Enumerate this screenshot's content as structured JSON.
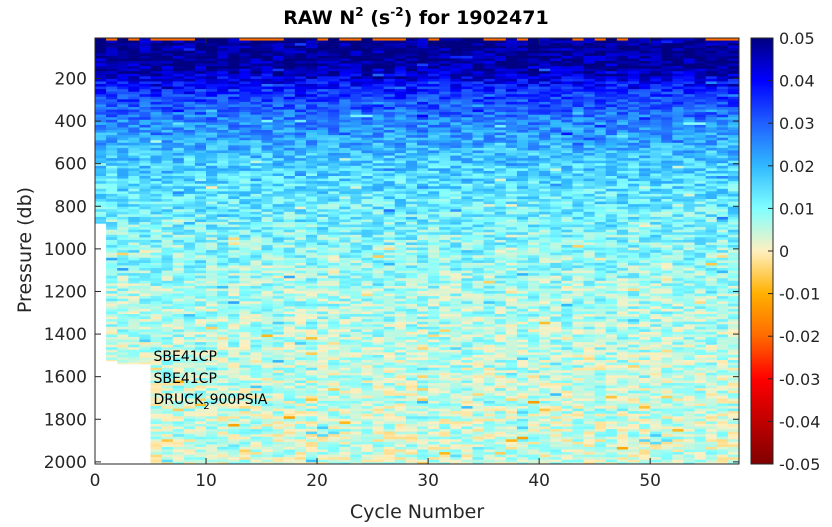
{
  "chart_data": {
    "type": "heatmap",
    "title": {
      "main": "RAW N",
      "sup1": "2",
      "mid": " (s",
      "sup2": "-2",
      "end": ") for 1902471"
    },
    "xlabel": "Cycle Number",
    "ylabel": "Pressure (db)",
    "xlim": [
      0,
      58
    ],
    "ylim": [
      2010,
      10
    ],
    "xticks": [
      0,
      10,
      20,
      30,
      40,
      50
    ],
    "yticks": [
      200,
      400,
      600,
      800,
      1000,
      1200,
      1400,
      1600,
      1800,
      2000
    ],
    "y_reversed": true,
    "colorbar": {
      "clim": [
        -0.05,
        0.05
      ],
      "ticks": [
        0.05,
        0.04,
        0.03,
        0.02,
        0.01,
        0,
        -0.01,
        -0.02,
        -0.03,
        -0.04,
        -0.05
      ],
      "tick_labels": [
        "0.05",
        "0.04",
        "0.03",
        "0.02",
        "0.01",
        "0",
        "-0.01",
        "-0.02",
        "-0.03",
        "-0.04",
        "-0.05"
      ],
      "colors": [
        "#800000",
        "#c00000",
        "#ff0000",
        "#ff6a00",
        "#ffb000",
        "#fff0c0",
        "#80ffff",
        "#30b8ff",
        "#2060ff",
        "#0000ff",
        "#000080"
      ]
    },
    "columns": [
      {
        "cycle_start": 0,
        "cycle_end": 1,
        "max_pressure": 880
      },
      {
        "cycle_start": 1,
        "cycle_end": 2,
        "max_pressure": 1525
      },
      {
        "cycle_start": 2,
        "cycle_end": 5,
        "max_pressure": 1540
      },
      {
        "cycle_start": 5,
        "cycle_end": 58,
        "max_pressure": 2010
      }
    ],
    "field_profile": [
      {
        "pressure": 10,
        "n2": 0.05
      },
      {
        "pressure": 150,
        "n2": 0.047
      },
      {
        "pressure": 250,
        "n2": 0.036
      },
      {
        "pressure": 400,
        "n2": 0.026
      },
      {
        "pressure": 600,
        "n2": 0.017
      },
      {
        "pressure": 900,
        "n2": 0.011
      },
      {
        "pressure": 1200,
        "n2": 0.007
      },
      {
        "pressure": 1600,
        "n2": 0.005
      },
      {
        "pressure": 2010,
        "n2": 0.004
      }
    ],
    "annotations": [
      {
        "text": "SBE41CP",
        "sub": ""
      },
      {
        "text": "SBE41CP",
        "sub": ""
      },
      {
        "text": "DRUCK",
        "sub": "2",
        "suffix": "900PSIA"
      }
    ]
  }
}
